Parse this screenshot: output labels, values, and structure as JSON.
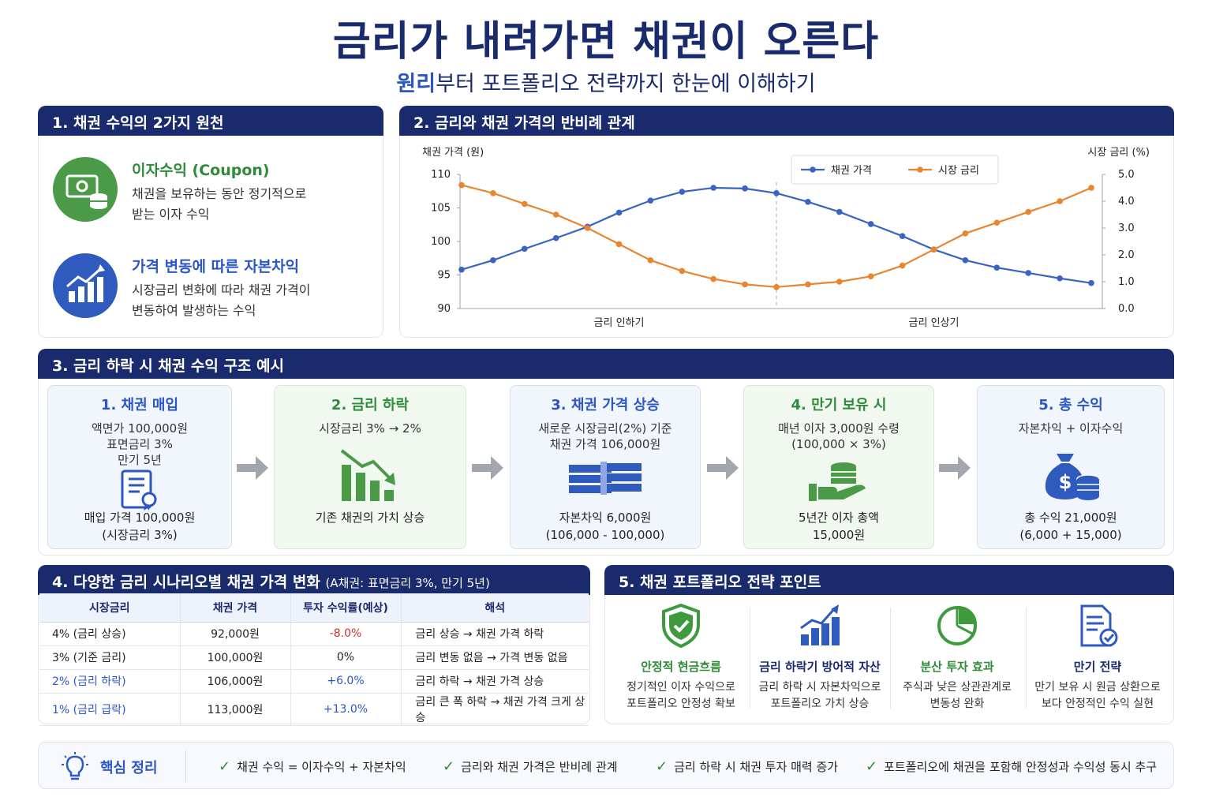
{
  "header": {
    "title": "금리가 내려가면 채권이 오른다",
    "subtitle_accent": "원리",
    "subtitle_rest": "부터 포트폴리오 전략까지 한눈에 이해하기"
  },
  "section1": {
    "heading": "1. 채권 수익의 2가지 원천",
    "items": [
      {
        "title": "이자수익 (Coupon)",
        "desc": "채권을 보유하는 동안 정기적으로\n받는 이자 수익",
        "color": "#2e8b3a",
        "icon": "money-coins-icon"
      },
      {
        "title": "가격 변동에 따른 자본차익",
        "desc": "시장금리 변화에 따라 채권 가격이\n변동하여 발생하는 수익",
        "color": "#2b56c7",
        "icon": "growth-chart-icon"
      }
    ]
  },
  "section2": {
    "heading": "2. 금리와 채권 가격의 반비례 관계"
  },
  "chart_data": {
    "type": "line",
    "left_axis_label": "채권 가격 (원)",
    "right_axis_label": "시장 금리 (%)",
    "left_ylim": [
      90,
      110
    ],
    "left_ticks": [
      "90",
      "95",
      "100",
      "105",
      "110"
    ],
    "right_ylim": [
      0.0,
      5.0
    ],
    "right_ticks": [
      "0.0",
      "1.0",
      "2.0",
      "3.0",
      "4.0",
      "5.0"
    ],
    "phases": [
      "금리 인하기",
      "금리 인상기"
    ],
    "legend_position": "top-right",
    "series": [
      {
        "name": "채권 가격",
        "axis": "left",
        "color": "#3a63c4",
        "values": [
          95.8,
          97.2,
          98.9,
          100.5,
          102.2,
          104.3,
          106.1,
          107.4,
          108.0,
          107.9,
          107.2,
          105.9,
          104.4,
          102.6,
          100.8,
          98.8,
          97.2,
          96.1,
          95.3,
          94.5,
          93.8
        ]
      },
      {
        "name": "시장 금리",
        "axis": "right",
        "color": "#e9852f",
        "values": [
          4.6,
          4.3,
          3.9,
          3.5,
          3.0,
          2.4,
          1.8,
          1.4,
          1.1,
          0.9,
          0.8,
          0.9,
          1.0,
          1.2,
          1.6,
          2.2,
          2.8,
          3.2,
          3.6,
          4.0,
          4.5
        ]
      }
    ]
  },
  "section3": {
    "heading": "3. 금리 하락 시 채권 수익 구조 예시",
    "steps": [
      {
        "title": "1. 채권 매입",
        "desc": "액면가 100,000원\n표면금리 3%\n만기 5년",
        "foot": "매입 가격 100,000원\n(시장금리 3%)",
        "icon": "certificate-document-icon"
      },
      {
        "title": "2. 금리 하락",
        "desc": "시장금리 3% → 2%",
        "foot": "기존 채권의 가치 상승",
        "icon": "falling-bars-icon"
      },
      {
        "title": "3. 채권 가격 상승",
        "desc": "새로운 시장금리(2%) 기준\n채권 가격 106,000원",
        "foot": "자본차익 6,000원\n(106,000 - 100,000)",
        "icon": "cash-stack-icon"
      },
      {
        "title": "4. 만기 보유 시",
        "desc": "매년 이자 3,000원 수령\n(100,000 × 3%)",
        "foot": "5년간 이자 총액\n15,000원",
        "icon": "hand-coins-icon"
      },
      {
        "title": "5. 총 수익",
        "desc": "자본차익 + 이자수익",
        "foot": "총 수익 21,000원\n(6,000 + 15,000)",
        "icon": "money-bag-icon"
      }
    ]
  },
  "section4": {
    "heading": "4. 다양한 금리 시나리오별 채권 가격 변화",
    "heading_note": "(A채권: 표면금리 3%, 만기 5년)",
    "columns": [
      "시장금리",
      "채권 가격",
      "투자 수익률(예상)",
      "해석"
    ],
    "rows": [
      {
        "rate": "4% (금리 상승)",
        "price": "92,000원",
        "return": "-8.0%",
        "note": "금리 상승 → 채권 가격 하락",
        "rate_color": "#222",
        "return_color": "#d0312d"
      },
      {
        "rate": "3% (기준 금리)",
        "price": "100,000원",
        "return": "0%",
        "note": "금리 변동 없음 → 가격 변동 없음",
        "rate_color": "#222",
        "return_color": "#222"
      },
      {
        "rate": "2% (금리 하락)",
        "price": "106,000원",
        "return": "+6.0%",
        "note": "금리 하락 → 채권 가격 상승",
        "rate_color": "#2b56c7",
        "return_color": "#2b56c7"
      },
      {
        "rate": "1% (금리 급락)",
        "price": "113,000원",
        "return": "+13.0%",
        "note": "금리 큰 폭 하락 → 채권 가격 크게 상승",
        "rate_color": "#2b56c7",
        "return_color": "#2b56c7"
      }
    ]
  },
  "section5": {
    "heading": "5. 채권 포트폴리오 전략 포인트",
    "points": [
      {
        "title": "안정적 현금흐름",
        "desc": "정기적인 이자 수익으로\n포트폴리오 안정성 확보",
        "color": "#2e8b3a",
        "icon": "shield-check-icon"
      },
      {
        "title": "금리 하락기 방어적 자산",
        "desc": "금리 하락 시 자본차익으로\n포트폴리오 가치 상승",
        "color": "#1a2b6d",
        "icon": "bar-chart-up-icon"
      },
      {
        "title": "분산 투자 효과",
        "desc": "주식과 낮은 상관관계로\n변동성 완화",
        "color": "#2e8b3a",
        "icon": "pie-chart-icon"
      },
      {
        "title": "만기 전략",
        "desc": "만기 보유 시 원금 상환으로\n보다 안정적인 수익 실현",
        "color": "#1a2b6d",
        "icon": "checklist-document-icon"
      }
    ]
  },
  "summary": {
    "label": "핵심 정리",
    "items": [
      "채권 수익 = 이자수익 + 자본차익",
      "금리와 채권 가격은 반비례 관계",
      "금리 하락 시 채권 투자 매력 증가",
      "포트폴리오에 채권을 포함해 안정성과 수익성 동시 추구"
    ]
  }
}
